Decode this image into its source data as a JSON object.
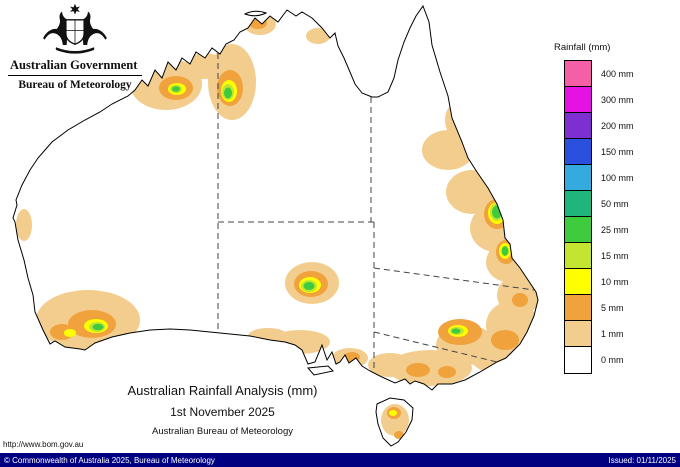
{
  "logo": {
    "government": "Australian Government",
    "bureau": "Bureau of Meteorology"
  },
  "legend": {
    "title": "Rainfall (mm)",
    "entries": [
      {
        "label": "400 mm",
        "color": "#f45fa8"
      },
      {
        "label": "300 mm",
        "color": "#e413e4"
      },
      {
        "label": "200 mm",
        "color": "#7d2fd1"
      },
      {
        "label": "150 mm",
        "color": "#2b50dd"
      },
      {
        "label": "100 mm",
        "color": "#35aade"
      },
      {
        "label": "50 mm",
        "color": "#1fb57d"
      },
      {
        "label": "25 mm",
        "color": "#3ecb3e"
      },
      {
        "label": "15 mm",
        "color": "#c4e432"
      },
      {
        "label": "10 mm",
        "color": "#ffff00"
      },
      {
        "label": "5 mm",
        "color": "#f0a23c"
      },
      {
        "label": "1 mm",
        "color": "#f2cd8d"
      },
      {
        "label": "0 mm",
        "color": "#ffffff"
      }
    ]
  },
  "caption": {
    "title": "Australian Rainfall Analysis (mm)",
    "date": "1st November 2025",
    "organisation": "Australian Bureau of Meteorology"
  },
  "footer": {
    "url": "http://www.bom.gov.au",
    "copyright": "© Commonwealth of Australia 2025, Bureau of Meteorology",
    "issued": "Issued: 01/11/2025"
  }
}
